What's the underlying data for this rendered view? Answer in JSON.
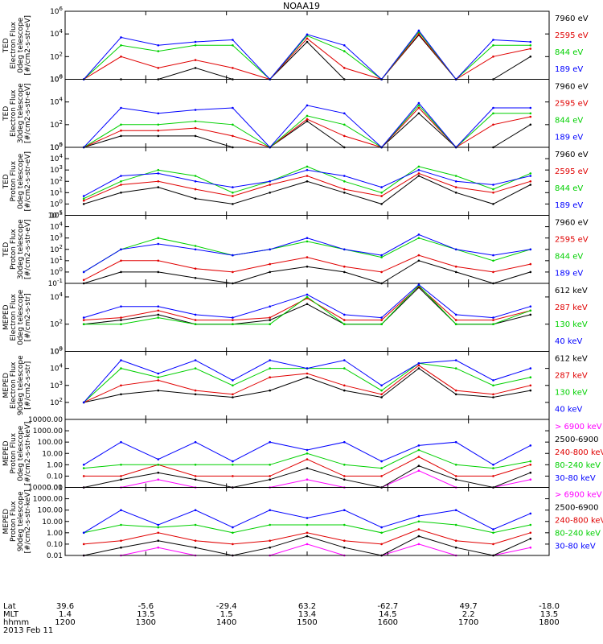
{
  "title": "NOAA19",
  "colors": {
    "c0": "#000000",
    "c1": "#e00000",
    "c2": "#00d000",
    "c3": "#0000ff",
    "c4": "#ff00ff",
    "frame": "#000000"
  },
  "x_axis": {
    "row_labels": [
      "Lat",
      "MLT",
      "hhmm"
    ],
    "lat": [
      "39.6",
      "-5.6",
      "-29.4",
      "63.2",
      "-62.7",
      "49.7",
      "-18.0"
    ],
    "mlt": [
      "1.4",
      "13.5",
      "1.5",
      "13.4",
      "14.5",
      "2.2",
      "13.5"
    ],
    "hhmm": [
      "1200",
      "1300",
      "1400",
      "1500",
      "1600",
      "1700",
      "1800"
    ],
    "date": "2013 Feb 11"
  },
  "chart_data": [
    {
      "type": "line",
      "instrument": "TED",
      "quantity": "Electron Flux",
      "telescope": "0deg telescope",
      "units": "[#/cm2-s-str-eV]",
      "yscale": "log",
      "ylim": [
        1,
        1000000
      ],
      "ytick_labels": [
        "10^0",
        "10^2",
        "10^4",
        "10^6"
      ],
      "series": [
        {
          "name": "7960 eV",
          "color": "c0"
        },
        {
          "name": "2595 eV",
          "color": "c1"
        },
        {
          "name": "844 eV",
          "color": "c2"
        },
        {
          "name": "189 eV",
          "color": "c3"
        }
      ],
      "x": [
        "1200",
        "1230",
        "1300",
        "1330",
        "1400",
        "1430",
        "1500",
        "1530",
        "1600",
        "1630",
        "1700",
        "1730",
        "1800"
      ],
      "values": [
        [
          1,
          1,
          1,
          10,
          1,
          1,
          2000,
          1,
          1,
          8000,
          1,
          1,
          100
        ],
        [
          1,
          100,
          10,
          50,
          10,
          1,
          4000,
          10,
          1,
          10000,
          1,
          100,
          500
        ],
        [
          1,
          1000,
          300,
          1000,
          1000,
          1,
          7000,
          300,
          1,
          15000,
          1,
          1000,
          1000
        ],
        [
          1,
          5000,
          1000,
          2000,
          3000,
          1,
          9000,
          1000,
          1,
          20000,
          1,
          3000,
          2000
        ]
      ]
    },
    {
      "type": "line",
      "instrument": "TED",
      "quantity": "Electron Flux",
      "telescope": "30deg telescope",
      "units": "[#/cm2-s-str-eV]",
      "yscale": "log",
      "ylim": [
        1,
        1000000
      ],
      "ytick_labels": [
        "10^0",
        "10^2",
        "10^4",
        "10^6"
      ],
      "series": [
        {
          "name": "7960 eV",
          "color": "c0"
        },
        {
          "name": "2595 eV",
          "color": "c1"
        },
        {
          "name": "844 eV",
          "color": "c2"
        },
        {
          "name": "189 eV",
          "color": "c3"
        }
      ],
      "x": [
        "1200",
        "1230",
        "1300",
        "1330",
        "1400",
        "1430",
        "1500",
        "1530",
        "1600",
        "1630",
        "1700",
        "1730",
        "1800"
      ],
      "values": [
        [
          1,
          10,
          10,
          10,
          1,
          1,
          200,
          1,
          1,
          1000,
          1,
          1,
          100
        ],
        [
          1,
          30,
          30,
          50,
          10,
          1,
          300,
          10,
          1,
          3000,
          1,
          100,
          500
        ],
        [
          1,
          100,
          100,
          200,
          100,
          1,
          600,
          100,
          1,
          5000,
          1,
          1000,
          1000
        ],
        [
          1,
          3000,
          1000,
          2000,
          3000,
          1,
          5000,
          1000,
          1,
          8000,
          1,
          3000,
          3000
        ]
      ]
    },
    {
      "type": "line",
      "instrument": "TED",
      "quantity": "Proton Flux",
      "telescope": "0deg telescope",
      "units": "[#/cm2-s-str-eV]",
      "yscale": "log",
      "ylim": [
        0.1,
        100000
      ],
      "ytick_labels": [
        "10^-1",
        "10^0",
        "10^1",
        "10^2",
        "10^3",
        "10^4",
        "10^5"
      ],
      "series": [
        {
          "name": "7960 eV",
          "color": "c0"
        },
        {
          "name": "2595 eV",
          "color": "c1"
        },
        {
          "name": "844 eV",
          "color": "c2"
        },
        {
          "name": "189 eV",
          "color": "c3"
        }
      ],
      "x": [
        "1200",
        "1230",
        "1300",
        "1330",
        "1400",
        "1430",
        "1500",
        "1530",
        "1600",
        "1630",
        "1700",
        "1730",
        "1800"
      ],
      "values": [
        [
          1,
          10,
          30,
          3,
          1,
          10,
          100,
          10,
          1,
          300,
          10,
          1,
          50
        ],
        [
          2,
          50,
          100,
          20,
          5,
          50,
          300,
          20,
          5,
          500,
          30,
          10,
          100
        ],
        [
          3,
          100,
          1000,
          300,
          10,
          100,
          2000,
          100,
          10,
          2000,
          300,
          20,
          500
        ],
        [
          5,
          300,
          500,
          100,
          30,
          100,
          1000,
          300,
          30,
          1000,
          100,
          50,
          300
        ]
      ]
    },
    {
      "type": "line",
      "instrument": "TED",
      "quantity": "Proton Flux",
      "telescope": "30deg telescope",
      "units": "[#/cm2-s-str-eV]",
      "yscale": "log",
      "ylim": [
        0.1,
        100000
      ],
      "ytick_labels": [
        "10^-1",
        "10^0",
        "10^1",
        "10^2",
        "10^3",
        "10^4",
        "10^5"
      ],
      "series": [
        {
          "name": "7960 eV",
          "color": "c0"
        },
        {
          "name": "2595 eV",
          "color": "c1"
        },
        {
          "name": "844 eV",
          "color": "c2"
        },
        {
          "name": "189 eV",
          "color": "c3"
        }
      ],
      "x": [
        "1200",
        "1230",
        "1300",
        "1330",
        "1400",
        "1430",
        "1500",
        "1530",
        "1600",
        "1630",
        "1700",
        "1730",
        "1800"
      ],
      "values": [
        [
          0.1,
          1,
          1,
          0.3,
          0.1,
          1,
          3,
          1,
          0.1,
          10,
          1,
          0.1,
          1
        ],
        [
          0.2,
          10,
          10,
          2,
          1,
          5,
          20,
          3,
          1,
          30,
          3,
          1,
          5
        ],
        [
          1,
          100,
          1000,
          200,
          30,
          100,
          500,
          100,
          20,
          1000,
          100,
          10,
          100
        ],
        [
          1,
          100,
          300,
          100,
          30,
          100,
          1000,
          100,
          30,
          2000,
          100,
          30,
          100
        ]
      ]
    },
    {
      "type": "line",
      "instrument": "MEPED",
      "quantity": "Electron Flux",
      "telescope": "0deg telescope",
      "units": "[#/cm2-s-str]",
      "yscale": "log",
      "ylim": [
        1,
        100000
      ],
      "ytick_labels": [
        "10^0",
        "10^2",
        "10^4"
      ],
      "series": [
        {
          "name": "612 keV",
          "color": "c0"
        },
        {
          "name": "287 keV",
          "color": "c1"
        },
        {
          "name": "130 keV",
          "color": "c2"
        },
        {
          "name": "40 keV",
          "color": "c3"
        }
      ],
      "x": [
        "1200",
        "1230",
        "1300",
        "1330",
        "1400",
        "1430",
        "1500",
        "1530",
        "1600",
        "1630",
        "1700",
        "1730",
        "1800"
      ],
      "values": [
        [
          100,
          200,
          500,
          100,
          100,
          200,
          3000,
          100,
          100,
          50000,
          100,
          100,
          500
        ],
        [
          200,
          300,
          1000,
          200,
          200,
          300,
          8000,
          200,
          200,
          60000,
          200,
          200,
          1000
        ],
        [
          100,
          100,
          300,
          100,
          100,
          100,
          10000,
          100,
          100,
          70000,
          100,
          100,
          1000
        ],
        [
          300,
          2000,
          2000,
          500,
          300,
          2000,
          15000,
          500,
          300,
          80000,
          500,
          300,
          2000
        ]
      ]
    },
    {
      "type": "line",
      "instrument": "MEPED",
      "quantity": "Electron Flux",
      "telescope": "90deg telescope",
      "units": "[#/cm2-s-str]",
      "yscale": "log",
      "ylim": [
        10,
        100000
      ],
      "ytick_labels": [
        "10^2",
        "10^3",
        "10^4",
        "10^5"
      ],
      "series": [
        {
          "name": "612 keV",
          "color": "c0"
        },
        {
          "name": "287 keV",
          "color": "c1"
        },
        {
          "name": "130 keV",
          "color": "c2"
        },
        {
          "name": "40 keV",
          "color": "c3"
        }
      ],
      "x": [
        "1200",
        "1230",
        "1300",
        "1330",
        "1400",
        "1430",
        "1500",
        "1530",
        "1600",
        "1630",
        "1700",
        "1730",
        "1800"
      ],
      "values": [
        [
          100,
          300,
          500,
          300,
          200,
          500,
          3000,
          500,
          200,
          10000,
          300,
          200,
          500
        ],
        [
          100,
          1000,
          2000,
          500,
          300,
          3000,
          5000,
          1000,
          300,
          15000,
          500,
          300,
          1000
        ],
        [
          100,
          10000,
          3000,
          10000,
          1000,
          10000,
          10000,
          10000,
          500,
          20000,
          10000,
          1000,
          3000
        ],
        [
          100,
          30000,
          5000,
          30000,
          2000,
          30000,
          10000,
          30000,
          1000,
          20000,
          30000,
          2000,
          10000
        ]
      ]
    },
    {
      "type": "line",
      "instrument": "MEPED",
      "quantity": "Proton Flux",
      "telescope": "0deg telescope",
      "units": "[#/cm2-s-str-keV]",
      "yscale": "log",
      "ylim": [
        0.01,
        10000
      ],
      "ytick_labels": [
        "0.01",
        "0.10",
        "1.00",
        "10.00",
        "100.00",
        "1000.00",
        "10000.00"
      ],
      "series": [
        {
          "name": "> 6900 keV",
          "color": "c4"
        },
        {
          "name": "2500-6900",
          "color": "c0"
        },
        {
          "name": "240-800 keV",
          "color": "c1"
        },
        {
          "name": "80-240 keV",
          "color": "c2"
        },
        {
          "name": "30-80 keV",
          "color": "c3"
        }
      ],
      "x": [
        "1200",
        "1230",
        "1300",
        "1330",
        "1400",
        "1430",
        "1500",
        "1530",
        "1600",
        "1630",
        "1700",
        "1730",
        "1800"
      ],
      "values": [
        [
          0.01,
          0.01,
          0.05,
          0.01,
          0.01,
          0.01,
          0.05,
          0.01,
          0.01,
          0.3,
          0.01,
          0.01,
          0.05
        ],
        [
          0.01,
          0.05,
          0.2,
          0.05,
          0.01,
          0.05,
          0.5,
          0.05,
          0.01,
          0.8,
          0.05,
          0.01,
          0.2
        ],
        [
          0.1,
          0.1,
          1,
          0.1,
          0.1,
          0.1,
          3,
          0.1,
          0.1,
          5,
          0.1,
          0.1,
          1
        ],
        [
          0.5,
          1,
          1,
          1,
          1,
          1,
          10,
          1,
          0.5,
          20,
          1,
          0.5,
          2
        ],
        [
          1,
          100,
          3,
          100,
          2,
          100,
          20,
          100,
          2,
          50,
          100,
          1,
          50
        ]
      ]
    },
    {
      "type": "line",
      "instrument": "MEPED",
      "quantity": "Proton Flux",
      "telescope": "90deg telescope",
      "units": "[#/cm2-s-str-keV]",
      "yscale": "log",
      "ylim": [
        0.01,
        10000
      ],
      "ytick_labels": [
        "0.01",
        "0.10",
        "1.00",
        "10.00",
        "100.00",
        "1000.00",
        "10000.00"
      ],
      "series": [
        {
          "name": "> 6900 keV",
          "color": "c4"
        },
        {
          "name": "2500-6900",
          "color": "c0"
        },
        {
          "name": "240-800 keV",
          "color": "c1"
        },
        {
          "name": "80-240 keV",
          "color": "c2"
        },
        {
          "name": "30-80 keV",
          "color": "c3"
        }
      ],
      "x": [
        "1200",
        "1230",
        "1300",
        "1330",
        "1400",
        "1430",
        "1500",
        "1530",
        "1600",
        "1630",
        "1700",
        "1730",
        "1800"
      ],
      "values": [
        [
          0.01,
          0.01,
          0.05,
          0.01,
          0.01,
          0.01,
          0.1,
          0.01,
          0.01,
          0.1,
          0.01,
          0.01,
          0.05
        ],
        [
          0.01,
          0.05,
          0.2,
          0.05,
          0.01,
          0.05,
          0.5,
          0.05,
          0.01,
          0.5,
          0.05,
          0.01,
          0.3
        ],
        [
          0.1,
          0.2,
          1,
          0.2,
          0.1,
          0.2,
          1,
          0.2,
          0.1,
          2,
          0.2,
          0.1,
          1
        ],
        [
          1,
          5,
          3,
          5,
          1,
          5,
          5,
          5,
          1,
          10,
          5,
          1,
          5
        ],
        [
          1,
          100,
          5,
          100,
          3,
          100,
          20,
          100,
          3,
          30,
          100,
          2,
          50
        ]
      ]
    }
  ]
}
